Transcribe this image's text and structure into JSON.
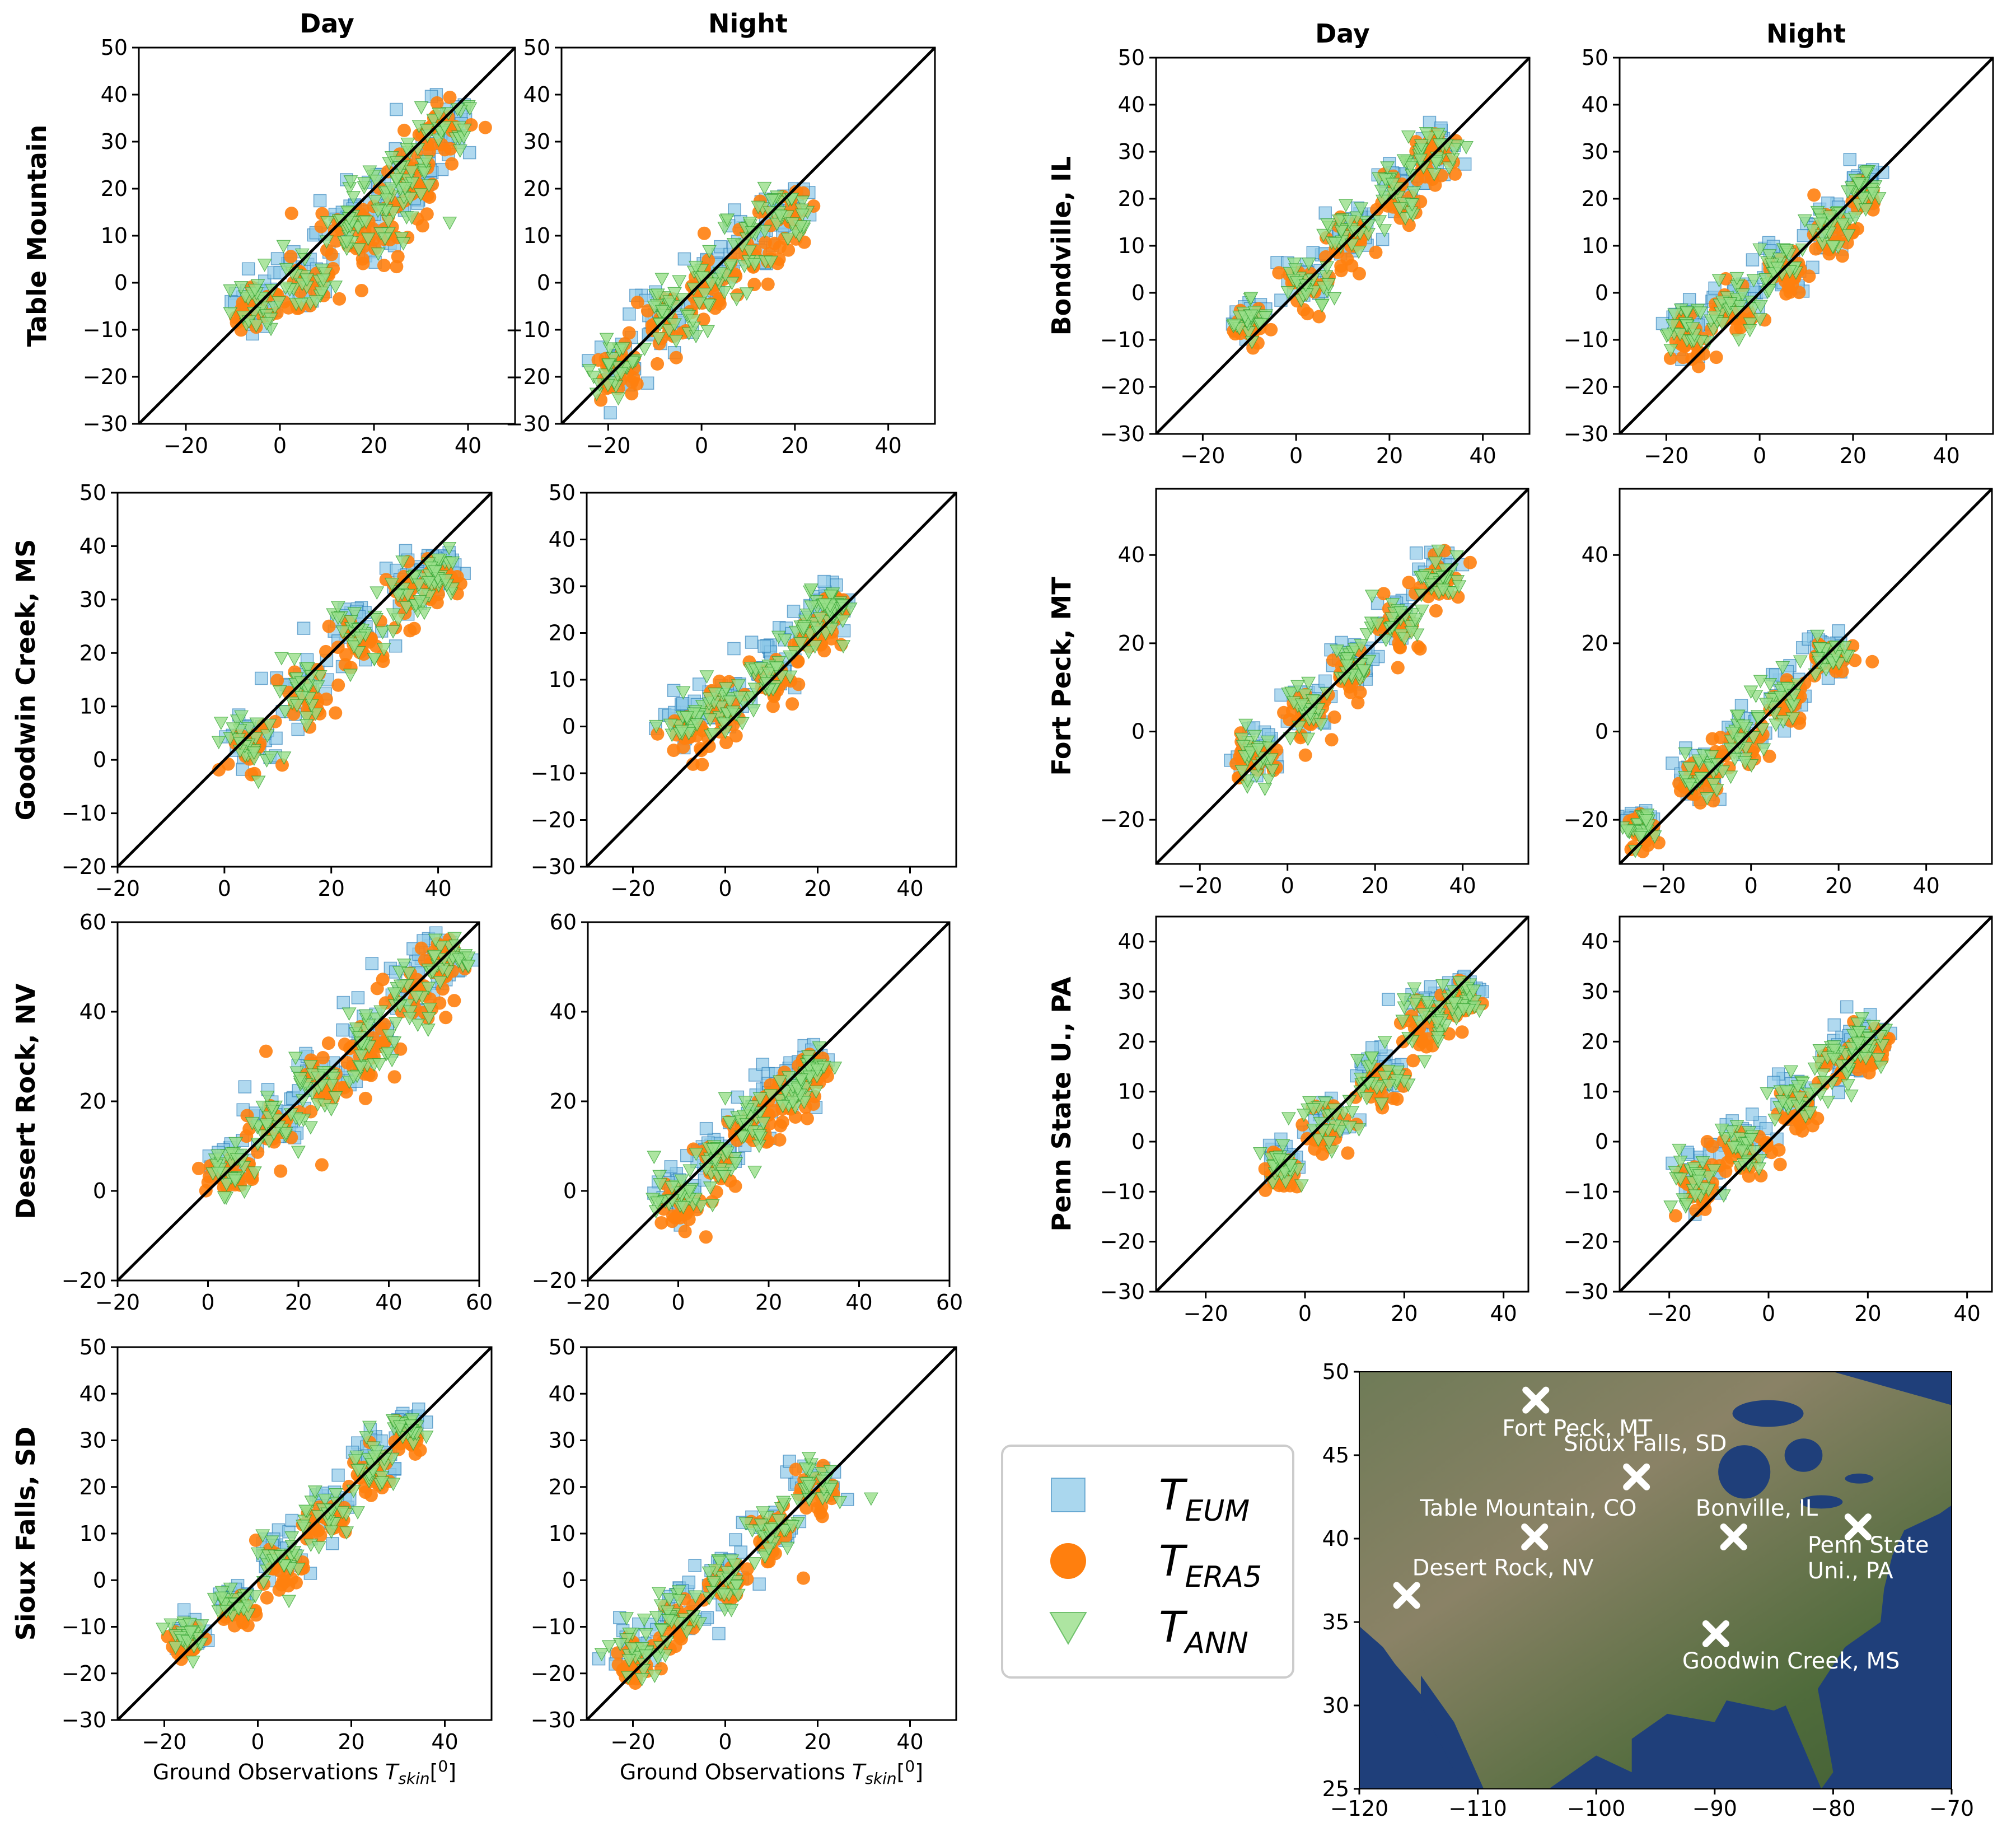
{
  "column_titles": {
    "day": "Day",
    "night": "Night"
  },
  "xlabel_main": "Ground Observations ",
  "xlabel_sym": "T",
  "xlabel_sub": "skin",
  "xlabel_tail": "[",
  "xlabel_sup": "0",
  "xlabel_end": "]",
  "chart_data": [
    {
      "type": "scatter",
      "site": "Table Mountain",
      "period": "Day",
      "xlim": [
        -30,
        50
      ],
      "ylim": [
        -30,
        50
      ],
      "xticks": [
        -20,
        0,
        20,
        40
      ],
      "yticks": [
        -30,
        -20,
        -10,
        0,
        10,
        20,
        30,
        40,
        50
      ],
      "clusters": [
        {
          "x": -5,
          "y": -5,
          "s": 3
        },
        {
          "x": 5,
          "y": 0,
          "s": 4
        },
        {
          "x": 15,
          "y": 12,
          "s": 4
        },
        {
          "x": 22,
          "y": 15,
          "s": 5
        },
        {
          "x": 28,
          "y": 22,
          "s": 4
        },
        {
          "x": 35,
          "y": 32,
          "s": 4
        }
      ]
    },
    {
      "type": "scatter",
      "site": "Table Mountain",
      "period": "Night",
      "xlim": [
        -30,
        50
      ],
      "ylim": [
        -30,
        50
      ],
      "xticks": [
        -20,
        0,
        20,
        40
      ],
      "yticks": [
        -30,
        -20,
        -10,
        0,
        10,
        20,
        30,
        40,
        50
      ],
      "clusters": [
        {
          "x": -18,
          "y": -18,
          "s": 3
        },
        {
          "x": -8,
          "y": -8,
          "s": 4
        },
        {
          "x": 2,
          "y": 0,
          "s": 4
        },
        {
          "x": 10,
          "y": 8,
          "s": 4
        },
        {
          "x": 18,
          "y": 15,
          "s": 3
        }
      ]
    },
    {
      "type": "scatter",
      "site": "Goodwin Creek, MS",
      "period": "Day",
      "xlim": [
        -20,
        50
      ],
      "ylim": [
        -20,
        50
      ],
      "xticks": [
        -20,
        0,
        20,
        40
      ],
      "yticks": [
        -20,
        -10,
        0,
        10,
        20,
        30,
        40,
        50
      ],
      "clusters": [
        {
          "x": 5,
          "y": 3,
          "s": 3
        },
        {
          "x": 15,
          "y": 13,
          "s": 3
        },
        {
          "x": 25,
          "y": 23,
          "s": 3
        },
        {
          "x": 35,
          "y": 32,
          "s": 3
        },
        {
          "x": 40,
          "y": 35,
          "s": 2
        }
      ]
    },
    {
      "type": "scatter",
      "site": "Goodwin Creek, MS",
      "period": "Night",
      "xlim": [
        -30,
        50
      ],
      "ylim": [
        -30,
        50
      ],
      "xticks": [
        -20,
        0,
        20,
        40
      ],
      "yticks": [
        -30,
        -20,
        -10,
        0,
        10,
        20,
        30,
        40,
        50
      ],
      "clusters": [
        {
          "x": -8,
          "y": 0,
          "s": 3
        },
        {
          "x": 0,
          "y": 4,
          "s": 3
        },
        {
          "x": 10,
          "y": 12,
          "s": 3
        },
        {
          "x": 18,
          "y": 20,
          "s": 3
        },
        {
          "x": 23,
          "y": 26,
          "s": 2
        }
      ]
    },
    {
      "type": "scatter",
      "site": "Desert Rock, NV",
      "period": "Day",
      "xlim": [
        -20,
        60
      ],
      "ylim": [
        -20,
        60
      ],
      "xticks": [
        -20,
        0,
        20,
        40,
        60
      ],
      "yticks": [
        -20,
        0,
        20,
        40,
        60
      ],
      "clusters": [
        {
          "x": 5,
          "y": 5,
          "s": 3
        },
        {
          "x": 15,
          "y": 15,
          "s": 4
        },
        {
          "x": 25,
          "y": 25,
          "s": 4
        },
        {
          "x": 35,
          "y": 33,
          "s": 4
        },
        {
          "x": 45,
          "y": 44,
          "s": 4
        },
        {
          "x": 52,
          "y": 52,
          "s": 3
        }
      ]
    },
    {
      "type": "scatter",
      "site": "Desert Rock, NV",
      "period": "Night",
      "xlim": [
        -20,
        60
      ],
      "ylim": [
        -20,
        60
      ],
      "xticks": [
        -20,
        0,
        20,
        40,
        60
      ],
      "yticks": [
        -20,
        0,
        20,
        40,
        60
      ],
      "clusters": [
        {
          "x": 0,
          "y": -2,
          "s": 3
        },
        {
          "x": 8,
          "y": 7,
          "s": 3
        },
        {
          "x": 16,
          "y": 15,
          "s": 3
        },
        {
          "x": 24,
          "y": 22,
          "s": 3
        },
        {
          "x": 30,
          "y": 28,
          "s": 2
        }
      ]
    },
    {
      "type": "scatter",
      "site": "Sioux Falls, SD",
      "period": "Day",
      "xlim": [
        -30,
        50
      ],
      "ylim": [
        -30,
        50
      ],
      "xticks": [
        -20,
        0,
        20,
        40
      ],
      "yticks": [
        -30,
        -20,
        -10,
        0,
        10,
        20,
        30,
        40,
        50
      ],
      "clusters": [
        {
          "x": -15,
          "y": -12,
          "s": 2
        },
        {
          "x": -5,
          "y": -5,
          "s": 2
        },
        {
          "x": 5,
          "y": 4,
          "s": 3
        },
        {
          "x": 15,
          "y": 14,
          "s": 3
        },
        {
          "x": 25,
          "y": 24,
          "s": 3
        },
        {
          "x": 32,
          "y": 32,
          "s": 2
        }
      ]
    },
    {
      "type": "scatter",
      "site": "Sioux Falls, SD",
      "period": "Night",
      "xlim": [
        -30,
        50
      ],
      "ylim": [
        -30,
        50
      ],
      "xticks": [
        -20,
        0,
        20,
        40
      ],
      "yticks": [
        -30,
        -20,
        -10,
        0,
        10,
        20,
        30,
        40,
        50
      ],
      "clusters": [
        {
          "x": -20,
          "y": -15,
          "s": 3
        },
        {
          "x": -10,
          "y": -8,
          "s": 3
        },
        {
          "x": 0,
          "y": 0,
          "s": 3
        },
        {
          "x": 10,
          "y": 10,
          "s": 3
        },
        {
          "x": 20,
          "y": 20,
          "s": 3
        }
      ]
    },
    {
      "type": "scatter",
      "site": "Bondville, IL",
      "period": "Day",
      "xlim": [
        -30,
        50
      ],
      "ylim": [
        -30,
        50
      ],
      "xticks": [
        -20,
        0,
        20,
        40
      ],
      "yticks": [
        -30,
        -20,
        -10,
        0,
        10,
        20,
        30,
        40,
        50
      ],
      "clusters": [
        {
          "x": -10,
          "y": -6,
          "s": 2
        },
        {
          "x": 2,
          "y": 2,
          "s": 3
        },
        {
          "x": 12,
          "y": 12,
          "s": 3
        },
        {
          "x": 22,
          "y": 22,
          "s": 3
        },
        {
          "x": 30,
          "y": 30,
          "s": 3
        }
      ]
    },
    {
      "type": "scatter",
      "site": "Bondville, IL",
      "period": "Night",
      "xlim": [
        -30,
        50
      ],
      "ylim": [
        -30,
        50
      ],
      "xticks": [
        -20,
        0,
        20,
        40
      ],
      "yticks": [
        -30,
        -20,
        -10,
        0,
        10,
        20,
        30,
        40,
        50
      ],
      "clusters": [
        {
          "x": -15,
          "y": -8,
          "s": 3
        },
        {
          "x": -5,
          "y": -2,
          "s": 3
        },
        {
          "x": 5,
          "y": 5,
          "s": 3
        },
        {
          "x": 15,
          "y": 14,
          "s": 3
        },
        {
          "x": 22,
          "y": 22,
          "s": 2
        }
      ]
    },
    {
      "type": "scatter",
      "site": "Fort Peck, MT",
      "period": "Day",
      "xlim": [
        -30,
        55
      ],
      "ylim": [
        -30,
        55
      ],
      "xticks": [
        -20,
        0,
        20,
        40
      ],
      "yticks": [
        -20,
        0,
        20,
        40
      ],
      "clusters": [
        {
          "x": -8,
          "y": -6,
          "s": 3
        },
        {
          "x": 5,
          "y": 5,
          "s": 3
        },
        {
          "x": 15,
          "y": 15,
          "s": 3
        },
        {
          "x": 25,
          "y": 25,
          "s": 3
        },
        {
          "x": 35,
          "y": 35,
          "s": 3
        }
      ]
    },
    {
      "type": "scatter",
      "site": "Fort Peck, MT",
      "period": "Night",
      "xlim": [
        -30,
        55
      ],
      "ylim": [
        -30,
        55
      ],
      "xticks": [
        -20,
        0,
        20,
        40
      ],
      "yticks": [
        -20,
        0,
        20,
        40
      ],
      "clusters": [
        {
          "x": -25,
          "y": -22,
          "s": 2
        },
        {
          "x": -12,
          "y": -10,
          "s": 3
        },
        {
          "x": -2,
          "y": -2,
          "s": 3
        },
        {
          "x": 8,
          "y": 7,
          "s": 3
        },
        {
          "x": 18,
          "y": 17,
          "s": 3
        }
      ]
    },
    {
      "type": "scatter",
      "site": "Penn State U., PA",
      "period": "Day",
      "xlim": [
        -30,
        45
      ],
      "ylim": [
        -30,
        45
      ],
      "xticks": [
        -20,
        0,
        20,
        40
      ],
      "yticks": [
        -30,
        -20,
        -10,
        0,
        10,
        20,
        30,
        40
      ],
      "clusters": [
        {
          "x": -5,
          "y": -5,
          "s": 2
        },
        {
          "x": 5,
          "y": 4,
          "s": 3
        },
        {
          "x": 15,
          "y": 13,
          "s": 3
        },
        {
          "x": 25,
          "y": 24,
          "s": 3
        },
        {
          "x": 32,
          "y": 29,
          "s": 2
        }
      ]
    },
    {
      "type": "scatter",
      "site": "Penn State U., PA",
      "period": "Night",
      "xlim": [
        -30,
        45
      ],
      "ylim": [
        -30,
        45
      ],
      "xticks": [
        -20,
        0,
        20,
        40
      ],
      "yticks": [
        -30,
        -20,
        -10,
        0,
        10,
        20,
        30,
        40
      ],
      "clusters": [
        {
          "x": -15,
          "y": -8,
          "s": 3
        },
        {
          "x": -5,
          "y": 0,
          "s": 3
        },
        {
          "x": 5,
          "y": 8,
          "s": 3
        },
        {
          "x": 15,
          "y": 16,
          "s": 3
        },
        {
          "x": 20,
          "y": 20,
          "s": 2
        }
      ]
    }
  ],
  "legend": [
    {
      "sym": "T",
      "sub": "EUM",
      "marker": "square",
      "color": "#8ec9e8"
    },
    {
      "sym": "T",
      "sub": "ERA5",
      "marker": "circle",
      "color": "#ff7f0e"
    },
    {
      "sym": "T",
      "sub": "ANN",
      "marker": "triangle",
      "color": "#98df8a"
    }
  ],
  "map": {
    "xticks": [
      -120,
      -110,
      -100,
      -90,
      -80,
      -70
    ],
    "yticks": [
      25,
      30,
      35,
      40,
      45,
      50
    ],
    "sites": [
      {
        "name": "Fort Peck, MT",
        "lon": -105.1,
        "lat": 48.3
      },
      {
        "name": "Sioux Falls, SD",
        "lon": -96.6,
        "lat": 43.7
      },
      {
        "name": "Table Mountain, CO",
        "lon": -105.2,
        "lat": 40.1
      },
      {
        "name": "Bonville, IL",
        "lon": -88.4,
        "lat": 40.1
      },
      {
        "name": "Penn State",
        "lon": -77.9,
        "lat": 40.7
      },
      {
        "name": "Uni., PA",
        "lon": -77.9,
        "lat": 40.7
      },
      {
        "name": "Desert Rock, NV",
        "lon": -116.0,
        "lat": 36.6
      },
      {
        "name": "Goodwin Creek, MS",
        "lon": -89.9,
        "lat": 34.3
      }
    ]
  },
  "colors": {
    "eum": "#8ec9e8",
    "eum_edge": "#1f77b4",
    "era5": "#ff7f0e",
    "ann": "#98df8a",
    "ann_edge": "#2ca02c"
  }
}
